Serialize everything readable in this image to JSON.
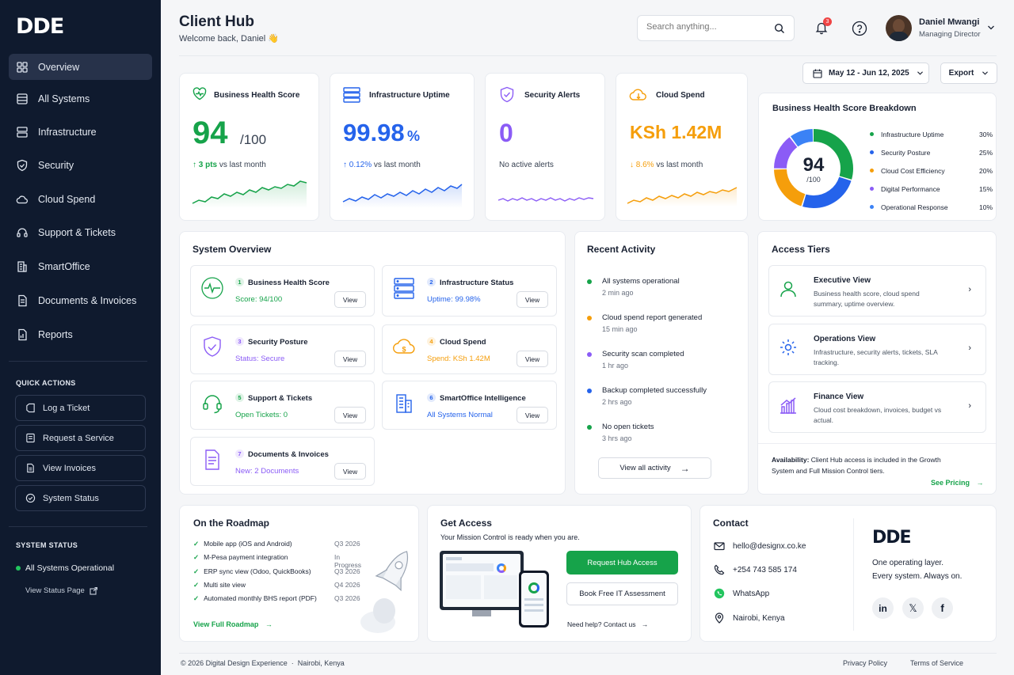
{
  "sidebar": {
    "logo": "DDE",
    "nav": [
      {
        "label": "Overview",
        "icon": "grid-icon"
      },
      {
        "label": "All Systems",
        "icon": "list-icon"
      },
      {
        "label": "Infrastructure",
        "icon": "server-icon"
      },
      {
        "label": "Security",
        "icon": "shield-icon"
      },
      {
        "label": "Cloud Spend",
        "icon": "cloud-icon"
      },
      {
        "label": "Support & Tickets",
        "icon": "headset-icon"
      },
      {
        "label": "SmartOffice",
        "icon": "building-icon"
      },
      {
        "label": "Documents & Invoices",
        "icon": "document-icon"
      },
      {
        "label": "Reports",
        "icon": "report-icon"
      }
    ],
    "quick_actions_heading": "QUICK ACTIONS",
    "quick_actions": [
      "Log a Ticket",
      "Request a Service",
      "View Invoices",
      "System Status"
    ],
    "system_status_heading": "SYSTEM STATUS",
    "system_status_text": "All Systems Operational",
    "view_status_page": "View Status Page"
  },
  "header": {
    "title": "Client Hub",
    "welcome": "Welcome back, Daniel 👋",
    "search_placeholder": "Search anything...",
    "notification_count": "3",
    "user_name": "Daniel Mwangi",
    "user_role": "Managing Director",
    "date_range": "May 12 - Jun 12, 2025",
    "export_label": "Export"
  },
  "kpis": {
    "health": {
      "title": "Business Health Score",
      "value": "94",
      "unit": "/100",
      "delta": "3 pts",
      "delta_suffix": "vs last month",
      "color": "#16a34a"
    },
    "uptime": {
      "title": "Infrastructure Uptime",
      "value": "99.98",
      "unit": "%",
      "delta": "0.12%",
      "delta_suffix": "vs last month",
      "color": "#2563eb"
    },
    "alerts": {
      "title": "Security Alerts",
      "value": "0",
      "note": "No active alerts",
      "color": "#8b5cf6"
    },
    "spend": {
      "title": "Cloud Spend",
      "value": "KSh 1.42M",
      "delta": "8.6%",
      "delta_suffix": "vs last month",
      "color": "#f59e0b"
    }
  },
  "breakdown": {
    "title": "Business Health Score Breakdown",
    "center_value": "94",
    "center_unit": "/100",
    "items": [
      {
        "label": "Infrastructure Uptime",
        "pct": "30%",
        "value": 30,
        "color": "#16a34a"
      },
      {
        "label": "Security Posture",
        "pct": "25%",
        "value": 25,
        "color": "#2563eb"
      },
      {
        "label": "Cloud Cost Efficiency",
        "pct": "20%",
        "value": 20,
        "color": "#f59e0b"
      },
      {
        "label": "Digital Performance",
        "pct": "15%",
        "value": 15,
        "color": "#8b5cf6"
      },
      {
        "label": "Operational Response",
        "pct": "10%",
        "value": 10,
        "color": "#3b82f6"
      }
    ]
  },
  "system_overview": {
    "title": "System Overview",
    "view_label": "View",
    "items": [
      {
        "num": "1",
        "title": "Business Health Score",
        "status": "Score: 94/100",
        "color": "#16a34a"
      },
      {
        "num": "2",
        "title": "Infrastructure Status",
        "status": "Uptime: 99.98%",
        "color": "#2563eb"
      },
      {
        "num": "3",
        "title": "Security Posture",
        "status": "Status: Secure",
        "color": "#8b5cf6"
      },
      {
        "num": "4",
        "title": "Cloud Spend",
        "status": "Spend: KSh 1.42M",
        "color": "#f59e0b"
      },
      {
        "num": "5",
        "title": "Support & Tickets",
        "status": "Open Tickets: 0",
        "color": "#16a34a"
      },
      {
        "num": "6",
        "title": "SmartOffice Intelligence",
        "status": "All Systems Normal",
        "color": "#2563eb"
      },
      {
        "num": "7",
        "title": "Documents & Invoices",
        "status": "New: 2 Documents",
        "color": "#8b5cf6"
      }
    ]
  },
  "activity": {
    "title": "Recent Activity",
    "items": [
      {
        "text": "All systems operational",
        "time": "2 min ago",
        "color": "#16a34a"
      },
      {
        "text": "Cloud spend report generated",
        "time": "15 min ago",
        "color": "#f59e0b"
      },
      {
        "text": "Security scan completed",
        "time": "1 hr ago",
        "color": "#8b5cf6"
      },
      {
        "text": "Backup completed successfully",
        "time": "2 hrs ago",
        "color": "#2563eb"
      },
      {
        "text": "No open tickets",
        "time": "3 hrs ago",
        "color": "#16a34a"
      }
    ],
    "view_all": "View all activity"
  },
  "tiers": {
    "title": "Access Tiers",
    "items": [
      {
        "title": "Executive View",
        "desc": "Business health score, cloud spend summary, uptime overview."
      },
      {
        "title": "Operations View",
        "desc": "Infrastructure, security alerts, tickets, SLA tracking."
      },
      {
        "title": "Finance View",
        "desc": "Cloud cost breakdown, invoices, budget vs actual."
      }
    ],
    "availability_label": "Availability:",
    "availability_text": "Client Hub access is included in the Growth System and Full Mission Control tiers.",
    "see_pricing": "See Pricing"
  },
  "roadmap": {
    "title": "On the Roadmap",
    "items": [
      {
        "label": "Mobile app (iOS and Android)",
        "when": "Q3 2026"
      },
      {
        "label": "M-Pesa payment integration",
        "when": "In Progress"
      },
      {
        "label": "ERP sync view (Odoo, QuickBooks)",
        "when": "Q3 2026"
      },
      {
        "label": "Multi site view",
        "when": "Q4 2026"
      },
      {
        "label": "Automated monthly BHS report (PDF)",
        "when": "Q3 2026"
      }
    ],
    "view_full": "View Full Roadmap"
  },
  "access": {
    "title": "Get Access",
    "subtitle": "Your Mission Control is ready when you are.",
    "primary": "Request Hub Access",
    "secondary": "Book Free IT Assessment",
    "help": "Need help? Contact us"
  },
  "contact": {
    "title": "Contact",
    "email": "hello@designx.co.ke",
    "phone": "+254 743 585 174",
    "whatsapp": "WhatsApp",
    "location": "Nairobi, Kenya",
    "brand": "DDE",
    "tagline1": "One operating layer.",
    "tagline2": "Every system. Always on."
  },
  "footer": {
    "copyright": "© 2026 Digital Design Experience  ·  Nairobi, Kenya",
    "privacy": "Privacy Policy",
    "terms": "Terms of Service"
  }
}
